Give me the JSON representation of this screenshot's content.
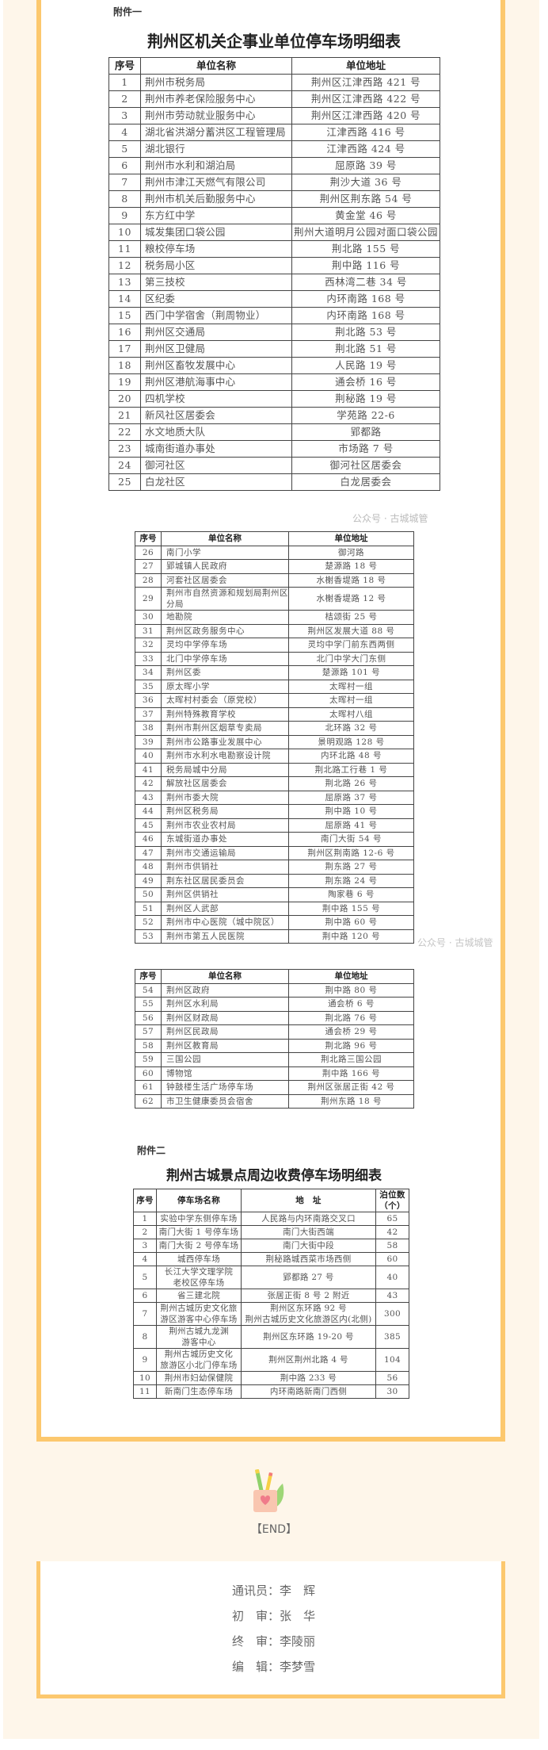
{
  "attachment1": {
    "label": "附件一",
    "title": "荆州区机关企事业单位停车场明细表",
    "headers": [
      "序号",
      "单位名称",
      "单位地址"
    ],
    "tables": [
      [
        [
          "1",
          "荆州市税务局",
          "荆州区江津西路 421 号"
        ],
        [
          "2",
          "荆州市养老保险服务中心",
          "荆州区江津西路 422 号"
        ],
        [
          "3",
          "荆州市劳动就业服务中心",
          "荆州区江津西路 420 号"
        ],
        [
          "4",
          "湖北省洪湖分蓄洪区工程管理局",
          "江津西路 416 号"
        ],
        [
          "5",
          "湖北银行",
          "江津西路 424 号"
        ],
        [
          "6",
          "荆州市水利和湖泊局",
          "屈原路 39 号"
        ],
        [
          "7",
          "荆州市津江天燃气有限公司",
          "荆沙大道 36 号"
        ],
        [
          "8",
          "荆州市机关后勤服务中心",
          "荆州区荆东路 54 号"
        ],
        [
          "9",
          "东方红中学",
          "黄金堂 46 号"
        ],
        [
          "10",
          "城发集团口袋公园",
          "荆州大道明月公园对面口袋公园"
        ],
        [
          "11",
          "粮校停车场",
          "荆北路 155 号"
        ],
        [
          "12",
          "税务局小区",
          "荆中路 116 号"
        ],
        [
          "13",
          "第三技校",
          "西林湾二巷 34 号"
        ],
        [
          "14",
          "区纪委",
          "内环南路 168 号"
        ],
        [
          "15",
          "西门中学宿舍（荆周物业）",
          "内环南路 168 号"
        ],
        [
          "16",
          "荆州区交通局",
          "荆北路 53 号"
        ],
        [
          "17",
          "荆州区卫健局",
          "荆北路 51 号"
        ],
        [
          "18",
          "荆州区畜牧发展中心",
          "人民路 19 号"
        ],
        [
          "19",
          "荆州区港航海事中心",
          "通会桥 16 号"
        ],
        [
          "20",
          "四机学校",
          "荆秘路 19 号"
        ],
        [
          "21",
          "新风社区居委会",
          "学苑路 22-6"
        ],
        [
          "22",
          "水文地质大队",
          "郢都路"
        ],
        [
          "23",
          "城南街道办事处",
          "市场路 7 号"
        ],
        [
          "24",
          "御河社区",
          "御河社区居委会"
        ],
        [
          "25",
          "白龙社区",
          "白龙居委会"
        ]
      ],
      [
        [
          "26",
          "南门小学",
          "御河路"
        ],
        [
          "27",
          "郢城镇人民政府",
          "楚源路 18 号"
        ],
        [
          "28",
          "河套社区居委会",
          "水榭香堤路 18 号"
        ],
        [
          "29",
          "荆州市自然资源和规划局荆州区分局",
          "水榭香堤路 12 号"
        ],
        [
          "30",
          "地勘院",
          "桔颂街 25 号"
        ],
        [
          "31",
          "荆州区政务服务中心",
          "荆州区发展大道 88 号"
        ],
        [
          "32",
          "灵均中学停车场",
          "灵均中学门前东西两侧"
        ],
        [
          "33",
          "北门中学停车场",
          "北门中学大门东侧"
        ],
        [
          "34",
          "荆州区委",
          "楚源路 101 号"
        ],
        [
          "35",
          "原太晖小学",
          "太晖村一组"
        ],
        [
          "36",
          "太晖村村委会（原党校）",
          "太晖村一组"
        ],
        [
          "37",
          "荆州特殊教育学校",
          "太晖村八组"
        ],
        [
          "38",
          "荆州市荆州区烟草专卖局",
          "北环路 32 号"
        ],
        [
          "39",
          "荆州市公路事业发展中心",
          "景明观路 128 号"
        ],
        [
          "40",
          "荆州市水利水电勘察设计院",
          "内环北路 48 号"
        ],
        [
          "41",
          "税务局城中分局",
          "荆北路工行巷 1 号"
        ],
        [
          "42",
          "解放社区居委会",
          "荆北路 26 号"
        ],
        [
          "43",
          "荆州市委大院",
          "屈原路 37 号"
        ],
        [
          "44",
          "荆州区税务局",
          "荆中路 10 号"
        ],
        [
          "45",
          "荆州市农业农村局",
          "屈原路 41 号"
        ],
        [
          "46",
          "东城街道办事处",
          "南门大街 54 号"
        ],
        [
          "47",
          "荆州市交通运输局",
          "荆州区荆南路 12-6 号"
        ],
        [
          "48",
          "荆州市供销社",
          "荆东路 27 号"
        ],
        [
          "49",
          "荆东社区居民委员会",
          "荆东路 24 号"
        ],
        [
          "50",
          "荆州区供销社",
          "陶家巷 6 号"
        ],
        [
          "51",
          "荆州区人武部",
          "荆中路 155 号"
        ],
        [
          "52",
          "荆州市中心医院（城中院区）",
          "荆中路 60 号"
        ],
        [
          "53",
          "荆州市第五人民医院",
          "荆中路 120 号"
        ]
      ],
      [
        [
          "54",
          "荆州区政府",
          "荆中路 80 号"
        ],
        [
          "55",
          "荆州区水利局",
          "通会桥 6 号"
        ],
        [
          "56",
          "荆州区财政局",
          "荆北路 76 号"
        ],
        [
          "57",
          "荆州区民政局",
          "通会桥 29 号"
        ],
        [
          "58",
          "荆州区教育局",
          "荆北路 96 号"
        ],
        [
          "59",
          "三国公园",
          "荆北路三国公园"
        ],
        [
          "60",
          "博物馆",
          "荆中路 166 号"
        ],
        [
          "61",
          "钟鼓楼生活广场停车场",
          "荆州区张居正街 42 号"
        ],
        [
          "62",
          "市卫生健康委员会宿舍",
          "荆州东路 18 号"
        ]
      ]
    ]
  },
  "attachment2": {
    "label": "附件二",
    "title": "荆州古城景点周边收费停车场明细表",
    "headers": [
      "序号",
      "停车场名称",
      "地　址",
      "泊位数\n（个）"
    ],
    "rows": [
      [
        "1",
        "实验中学东侧停车场",
        "人民路与内环南路交叉口",
        "65"
      ],
      [
        "2",
        "南门大街 1 号停车场",
        "南门大街西端",
        "42"
      ],
      [
        "3",
        "南门大街 2 号停车场",
        "南门大街中段",
        "58"
      ],
      [
        "4",
        "城西停车场",
        "荆秘路城西菜市场西侧",
        "60"
      ],
      [
        "5",
        "长江大学文理学院\n老校区停车场",
        "郢都路 27 号",
        "40"
      ],
      [
        "6",
        "省三建北院",
        "张居正街 8 号 2 附近",
        "43"
      ],
      [
        "7",
        "荆州古城历史文化旅\n游区游客中心停车场",
        "荆州区东环路 92 号\n荆州古城历史文化旅游区内(北侧)",
        "300"
      ],
      [
        "8",
        "荆州古城九龙渊\n游客中心",
        "荆州区东环路 19-20 号",
        "385"
      ],
      [
        "9",
        "荆州古城历史文化\n旅游区小北门停车场",
        "荆州区荆州北路 4 号",
        "104"
      ],
      [
        "10",
        "荆州市妇幼保健院",
        "荆中路 233 号",
        "56"
      ],
      [
        "11",
        "新南门生态停车场",
        "内环南路新南门西侧",
        "30"
      ]
    ]
  },
  "watermark": "公众号 · 古城城管",
  "footer": {
    "end": "【END】",
    "icon": "pen-cup-icon",
    "credits": [
      "通讯员：李　辉",
      "初　审：张　华",
      "终　审：李陵丽",
      "编　辑：李梦雪"
    ]
  },
  "colors": {
    "frame": "#fcc86e",
    "background": "#fef6ea"
  }
}
